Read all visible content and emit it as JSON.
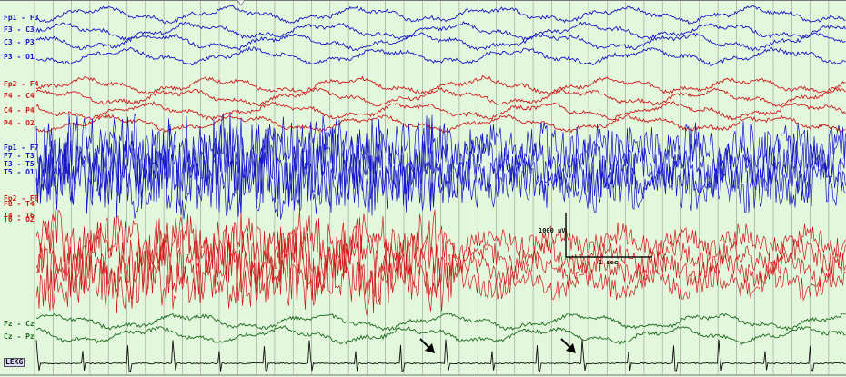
{
  "channels": [
    {
      "label": "Fp1 - F3",
      "group": "blue"
    },
    {
      "label": "F3 - C3",
      "group": "blue"
    },
    {
      "label": "C3 - P3",
      "group": "blue"
    },
    {
      "label": "P3 - O1",
      "group": "blue"
    },
    {
      "label": "Fp2 - F4",
      "group": "red"
    },
    {
      "label": "F4 - C4",
      "group": "red"
    },
    {
      "label": "C4 - P4",
      "group": "red"
    },
    {
      "label": "P4 - O2",
      "group": "red"
    },
    {
      "label": "Fp1 - F7",
      "group": "blue"
    },
    {
      "label": "F7 - T3",
      "group": "blue"
    },
    {
      "label": "T3 - T5",
      "group": "blue"
    },
    {
      "label": "T5 - O1",
      "group": "blue"
    },
    {
      "label": "Fp2 - F8",
      "group": "red"
    },
    {
      "label": "F8 - T4",
      "group": "red"
    },
    {
      "label": "T4 - T6",
      "group": "red"
    },
    {
      "label": "T6 - O2",
      "group": "red"
    },
    {
      "label": "Fz - Cz",
      "group": "green"
    },
    {
      "label": "Cz - Pz",
      "group": "green"
    },
    {
      "label": "LEKG",
      "group": "black"
    }
  ],
  "calibration": {
    "amplitude_label": "1000 uV",
    "time_label": "1 sec"
  },
  "colors": {
    "blue": "#1414c8",
    "red": "#d01818",
    "green": "#1a6a1a",
    "black": "#111111",
    "background": "#e2f7dc",
    "gridline": "#9a9a9a"
  },
  "markers": [
    {
      "name": "arrow-icon",
      "direction": "down-right"
    },
    {
      "name": "arrow-icon",
      "direction": "down-right"
    }
  ]
}
